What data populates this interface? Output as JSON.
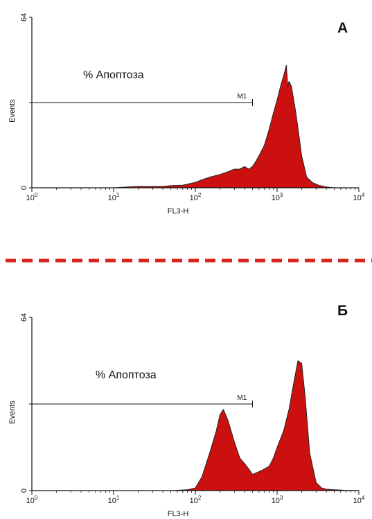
{
  "chart_data": [
    {
      "type": "area",
      "panel_label": "А",
      "title": "",
      "xlabel": "FL3-H",
      "ylabel": "Events",
      "x_scale": "log",
      "xlim": [
        1,
        10000
      ],
      "ylim": [
        0,
        64
      ],
      "x_ticks": [
        {
          "base": "10",
          "exp": "0"
        },
        {
          "base": "10",
          "exp": "1"
        },
        {
          "base": "10",
          "exp": "2"
        },
        {
          "base": "10",
          "exp": "3"
        },
        {
          "base": "10",
          "exp": "4"
        }
      ],
      "y_ticks": [
        "0",
        "64"
      ],
      "annotation": "% Апоптоза",
      "gate": {
        "label": "M1",
        "x_start": 1,
        "x_end": 500,
        "y": 32
      },
      "grid": false,
      "fill_color": "#cc1010",
      "series": [
        {
          "x": [
            1,
            3,
            10,
            15,
            20,
            30,
            40,
            50,
            70,
            100,
            120,
            150,
            200,
            250,
            300,
            350,
            400,
            450,
            500,
            550,
            600,
            700,
            800,
            900,
            1000,
            1100,
            1200,
            1300,
            1350,
            1400,
            1500,
            1700,
            2000,
            2300,
            2700,
            3200,
            4000,
            5000
          ],
          "y": [
            0,
            0,
            0,
            0.3,
            0.5,
            0.5,
            0.5,
            0.8,
            1,
            2,
            3,
            4,
            5,
            6,
            7,
            7,
            8,
            7,
            8,
            10,
            12,
            16,
            22,
            28,
            33,
            38,
            42,
            46,
            38,
            40,
            38,
            28,
            12,
            4,
            2,
            1,
            0.3,
            0
          ]
        }
      ]
    },
    {
      "type": "area",
      "panel_label": "Б",
      "title": "",
      "xlabel": "FL3-H",
      "ylabel": "Events",
      "x_scale": "log",
      "xlim": [
        1,
        10000
      ],
      "ylim": [
        0,
        64
      ],
      "x_ticks": [
        {
          "base": "10",
          "exp": "0"
        },
        {
          "base": "10",
          "exp": "1"
        },
        {
          "base": "10",
          "exp": "2"
        },
        {
          "base": "10",
          "exp": "3"
        },
        {
          "base": "10",
          "exp": "4"
        }
      ],
      "y_ticks": [
        "0",
        "64"
      ],
      "annotation": "% Апоптоза",
      "gate": {
        "label": "M1",
        "x_start": 1,
        "x_end": 500,
        "y": 32
      },
      "grid": false,
      "fill_color": "#cc1010",
      "series": [
        {
          "x": [
            1,
            50,
            80,
            100,
            120,
            150,
            180,
            200,
            220,
            250,
            300,
            350,
            400,
            450,
            500,
            600,
            700,
            800,
            900,
            1000,
            1200,
            1400,
            1600,
            1800,
            2000,
            2200,
            2500,
            3000,
            3500,
            4000,
            5000,
            7000,
            10000
          ],
          "y": [
            0,
            0,
            0.3,
            1,
            5,
            14,
            22,
            28,
            30,
            26,
            18,
            12,
            10,
            8,
            6,
            7,
            8,
            9,
            12,
            16,
            22,
            30,
            40,
            48,
            47,
            35,
            14,
            3,
            1,
            0.5,
            0.3,
            0.1,
            0
          ]
        }
      ]
    }
  ],
  "divider_color": "#d7261e"
}
